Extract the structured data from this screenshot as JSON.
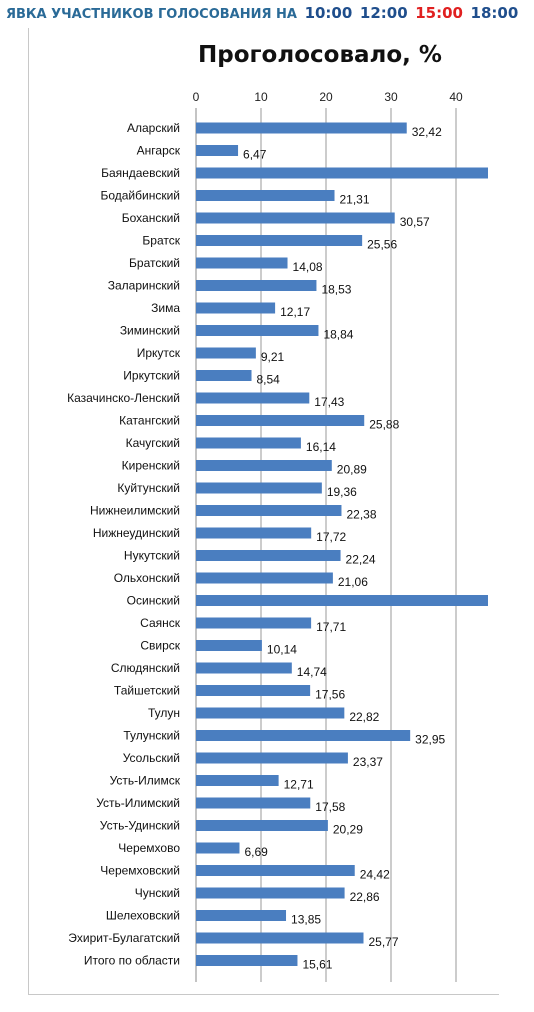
{
  "header": {
    "label": "ЯВКА УЧАСТНИКОВ ГОЛОСОВАНИЯ НА",
    "times": [
      {
        "text": "10:00",
        "color": "#1f4e8c"
      },
      {
        "text": "12:00",
        "color": "#1f4e8c"
      },
      {
        "text": "15:00",
        "color": "#e02020"
      },
      {
        "text": "18:00",
        "color": "#1f4e8c"
      }
    ]
  },
  "chart_data": {
    "type": "bar",
    "orientation": "horizontal",
    "title": "Проголосовало, %",
    "xlabel": "",
    "ylabel": "",
    "xlim": [
      0,
      45
    ],
    "xticks": [
      0,
      10,
      20,
      30,
      40
    ],
    "grid": true,
    "bar_color": "#4a7ec0",
    "categories": [
      "Аларский",
      "Ангарск",
      "Баяндаевский",
      "Бодайбинский",
      "Боханский",
      "Братск",
      "Братский",
      "Заларинский",
      "Зима",
      "Зиминский",
      "Иркутск",
      "Иркутский",
      "Казачинско-Ленский",
      "Катангский",
      "Качугский",
      "Киренский",
      "Куйтунский",
      "Нижнеилимский",
      "Нижнеудинский",
      "Нукутский",
      "Ольхонский",
      "Осинский",
      "Саянск",
      "Свирск",
      "Слюдянский",
      "Тайшетский",
      "Тулун",
      "Тулунский",
      "Усольский",
      "Усть-Илимск",
      "Усть-Илимский",
      "Усть-Удинский",
      "Черемхово",
      "Черемховский",
      "Чунский",
      "Шелеховский",
      "Эхирит-Булагатский",
      "Итого по области"
    ],
    "values": [
      32.42,
      6.47,
      45,
      21.31,
      30.57,
      25.56,
      14.08,
      18.53,
      12.17,
      18.84,
      9.21,
      8.54,
      17.43,
      25.88,
      16.14,
      20.89,
      19.36,
      22.38,
      17.72,
      22.24,
      21.06,
      45,
      17.71,
      10.14,
      14.74,
      17.56,
      22.82,
      32.95,
      23.37,
      12.71,
      17.58,
      20.29,
      6.69,
      24.42,
      22.86,
      13.85,
      25.77,
      15.61
    ],
    "data_labels": [
      "32,42",
      "6,47",
      "",
      "21,31",
      "30,57",
      "25,56",
      "14,08",
      "18,53",
      "12,17",
      "18,84",
      "9,21",
      "8,54",
      "17,43",
      "25,88",
      "16,14",
      "20,89",
      "19,36",
      "22,38",
      "17,72",
      "22,24",
      "21,06",
      "",
      "17,71",
      "10,14",
      "14,74",
      "17,56",
      "22,82",
      "32,95",
      "23,37",
      "12,71",
      "17,58",
      "20,29",
      "6,69",
      "24,42",
      "22,86",
      "13,85",
      "25,77",
      "15,61"
    ]
  }
}
